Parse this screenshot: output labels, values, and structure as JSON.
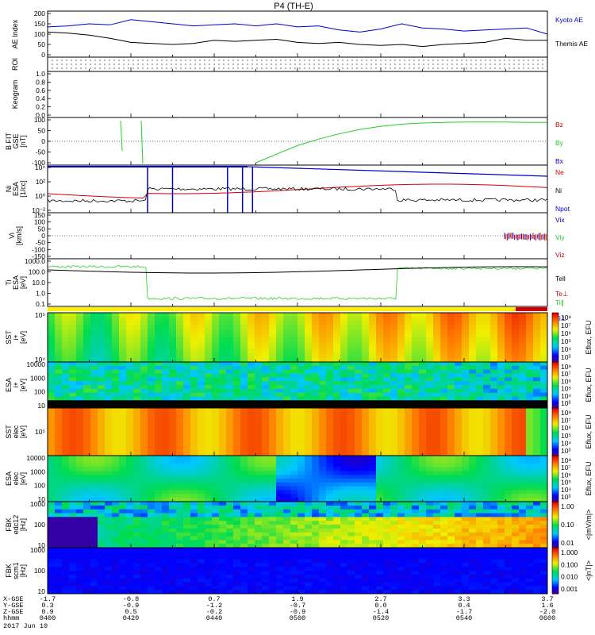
{
  "title": "P4 (TH-E)",
  "colors": {
    "black": "#000000",
    "blue": "#0000c8",
    "red": "#d00000",
    "green": "#22cc22"
  },
  "chart_data": [
    {
      "id": "ae",
      "type": "line",
      "ylabel": "AE Index",
      "yticks": [
        "200",
        "150",
        "100",
        "50",
        "0"
      ],
      "ylim": [
        0,
        200
      ],
      "series": [
        {
          "name": "Kyoto AE",
          "color": "#0000c8",
          "values": [
            135,
            140,
            150,
            145,
            170,
            160,
            150,
            140,
            145,
            150,
            140,
            150,
            135,
            140,
            120,
            110,
            125,
            150,
            130,
            125,
            115,
            120,
            125,
            130,
            100
          ]
        },
        {
          "name": "Themis AE",
          "color": "#000000",
          "values": [
            110,
            105,
            95,
            80,
            60,
            55,
            50,
            55,
            70,
            65,
            70,
            75,
            60,
            55,
            60,
            50,
            45,
            50,
            40,
            50,
            55,
            60,
            80,
            70,
            70
          ]
        }
      ]
    },
    {
      "id": "roi",
      "type": "table",
      "ylabel": "ROI"
    },
    {
      "id": "keogram",
      "type": "line",
      "ylabel": "Keogram",
      "yticks": [
        "1.0",
        "0.8",
        "0.6",
        "0.4",
        "0.2",
        "0.0"
      ],
      "ylim": [
        0,
        1
      ]
    },
    {
      "id": "bfit",
      "type": "line",
      "ylabel": "B FIT\nGSE\n[nT]",
      "yticks": [
        "100",
        "50",
        "0",
        "-50",
        "-100"
      ],
      "ylim": [
        -100,
        100
      ],
      "series": [
        {
          "name": "Bz",
          "color": "#d00000",
          "values": []
        },
        {
          "name": "By",
          "color": "#22cc22",
          "values": [
            null,
            null,
            null,
            null,
            null,
            null,
            null,
            null,
            null,
            null,
            -100,
            -60,
            -20,
            10,
            35,
            55,
            70,
            80,
            85,
            88,
            90,
            90,
            90,
            88,
            88
          ]
        },
        {
          "name": "Bx",
          "color": "#0000c8",
          "values": []
        }
      ]
    },
    {
      "id": "ni",
      "type": "line",
      "ylabel": "Ni\nESA\n[1/cc]",
      "yticks": [
        "10⁴",
        "10²",
        "10⁰",
        "10⁻²"
      ],
      "series": [
        {
          "name": "Ne",
          "color": "#d00000"
        },
        {
          "name": "Ni",
          "color": "#000000"
        },
        {
          "name": "Npot",
          "color": "#0000c8"
        }
      ]
    },
    {
      "id": "vi",
      "type": "line",
      "ylabel": "Vi\n[km/s]",
      "yticks": [
        "150",
        "100",
        "50",
        "0",
        "-50",
        "-100",
        "-150"
      ],
      "ylim": [
        -150,
        150
      ],
      "series": [
        {
          "name": "Vix",
          "color": "#0000c8"
        },
        {
          "name": "Viy",
          "color": "#22cc22"
        },
        {
          "name": "Viz",
          "color": "#d00000"
        }
      ]
    },
    {
      "id": "ti",
      "type": "line",
      "ylabel": "Ti\nESA\n[eV]",
      "yticks": [
        "1000.0",
        "100.0",
        "10.0",
        "1.0",
        "0.1"
      ],
      "series": [
        {
          "name": "Tell",
          "color": "#000000"
        },
        {
          "name": "Te⊥",
          "color": "#d00000"
        },
        {
          "name": "Ti∥",
          "color": "#22cc22"
        },
        {
          "name": "Ti⊥",
          "color": "#0000c8"
        }
      ]
    },
    {
      "id": "sst_i",
      "type": "heatmap",
      "ylabel": "SST\ni+\n[eV]",
      "yticks": [
        "10⁵",
        "10⁴"
      ],
      "colorbar": {
        "label": "Eflux, EFU",
        "ticks": [
          "10⁸",
          "10⁷",
          "10⁶",
          "10⁵",
          "10⁴",
          "10³"
        ]
      }
    },
    {
      "id": "esa_i",
      "type": "heatmap",
      "ylabel": "ESA\ni+\n[eV]",
      "yticks": [
        "10000",
        "1000",
        "100",
        "10"
      ],
      "colorbar": {
        "label": "Eflux, EFU",
        "ticks": [
          "10⁸",
          "10⁷",
          "10⁶",
          "10⁵",
          "10⁴",
          "10³"
        ]
      }
    },
    {
      "id": "sst_e",
      "type": "heatmap",
      "ylabel": "SST\nelec\n[eV]",
      "yticks": [
        "10⁵"
      ],
      "colorbar": {
        "label": "Eflux, EFU",
        "ticks": [
          "10⁸",
          "10⁷",
          "10⁶",
          "10⁵",
          "10⁴",
          "10³"
        ]
      }
    },
    {
      "id": "esa_e",
      "type": "heatmap",
      "ylabel": "ESA\nelec\n[eV]",
      "yticks": [
        "10000",
        "1000",
        "100",
        "10"
      ],
      "colorbar": {
        "label": "Eflux, EFU",
        "ticks": [
          "10⁸",
          "10⁷",
          "10⁶",
          "10⁵",
          "10⁴",
          "10³"
        ]
      }
    },
    {
      "id": "fbk_e",
      "type": "heatmap",
      "ylabel": "FBK\nedc12\n[Hz]",
      "yticks": [
        "1000",
        "100",
        "10"
      ],
      "colorbar": {
        "label": "<|mV/m|>",
        "ticks": [
          "1.00",
          "0.10",
          "0.01"
        ]
      }
    },
    {
      "id": "fbk_b",
      "type": "heatmap",
      "ylabel": "FBK\nscm1\n[Hz]",
      "yticks": [
        "1000",
        "100",
        "10"
      ],
      "colorbar": {
        "label": "<|nT|>",
        "ticks": [
          "1.000",
          "0.100",
          "0.010",
          "0.001"
        ]
      }
    }
  ],
  "footer": {
    "rows": [
      {
        "label": "X-GSE",
        "values": [
          "-1.7",
          "-0.8",
          "0.7",
          "1.9",
          "2.7",
          "3.3",
          "3.7"
        ]
      },
      {
        "label": "Y-GSE",
        "values": [
          "0.3",
          "-0.9",
          "-1.2",
          "-0.7",
          "0.0",
          "0.4",
          "1.6"
        ]
      },
      {
        "label": "Z-GSE",
        "values": [
          "0.9",
          "0.5",
          "-0.2",
          "-0.9",
          "-1.4",
          "-1.7",
          "-2.0"
        ]
      },
      {
        "label": "hhmm",
        "values": [
          "0400",
          "0420",
          "0440",
          "0500",
          "0520",
          "0540",
          "0600"
        ]
      }
    ],
    "date": "2017 Jun 10"
  }
}
